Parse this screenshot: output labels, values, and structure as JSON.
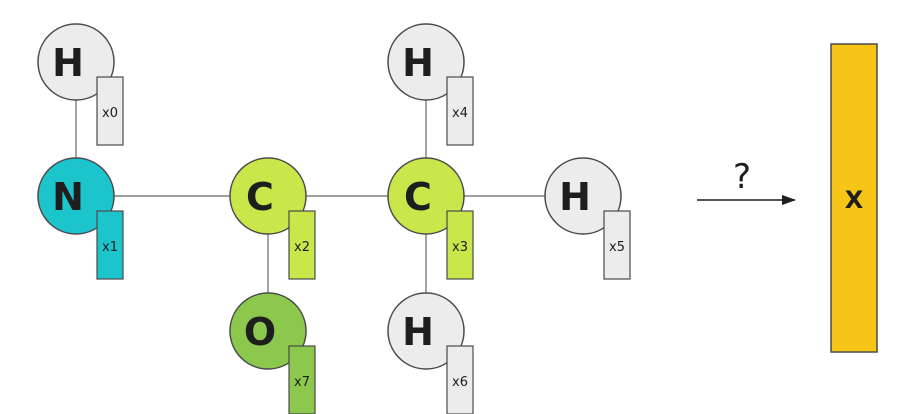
{
  "colors": {
    "hydrogen": "#ececec",
    "nitrogen": "#1cc4cc",
    "carbon": "#c9e64b",
    "oxygen": "#8cc84e",
    "output": "#f6c518",
    "stroke": "#4a4a4a",
    "bond": "#666666"
  },
  "atoms": [
    {
      "id": "h0",
      "element": "H",
      "vector": "x0",
      "color": "hydrogen"
    },
    {
      "id": "n1",
      "element": "N",
      "vector": "x1",
      "color": "nitrogen"
    },
    {
      "id": "c2",
      "element": "C",
      "vector": "x2",
      "color": "carbon"
    },
    {
      "id": "c3",
      "element": "C",
      "vector": "x3",
      "color": "carbon"
    },
    {
      "id": "h4",
      "element": "H",
      "vector": "x4",
      "color": "hydrogen"
    },
    {
      "id": "h5",
      "element": "H",
      "vector": "x5",
      "color": "hydrogen"
    },
    {
      "id": "h6",
      "element": "H",
      "vector": "x6",
      "color": "hydrogen"
    },
    {
      "id": "o7",
      "element": "O",
      "vector": "x7",
      "color": "oxygen"
    }
  ],
  "bonds": [
    [
      "h0",
      "n1"
    ],
    [
      "n1",
      "c2"
    ],
    [
      "c2",
      "c3"
    ],
    [
      "c2",
      "o7"
    ],
    [
      "c3",
      "h4"
    ],
    [
      "c3",
      "h5"
    ],
    [
      "c3",
      "h6"
    ]
  ],
  "arrow_label": "?",
  "output_label": "X"
}
